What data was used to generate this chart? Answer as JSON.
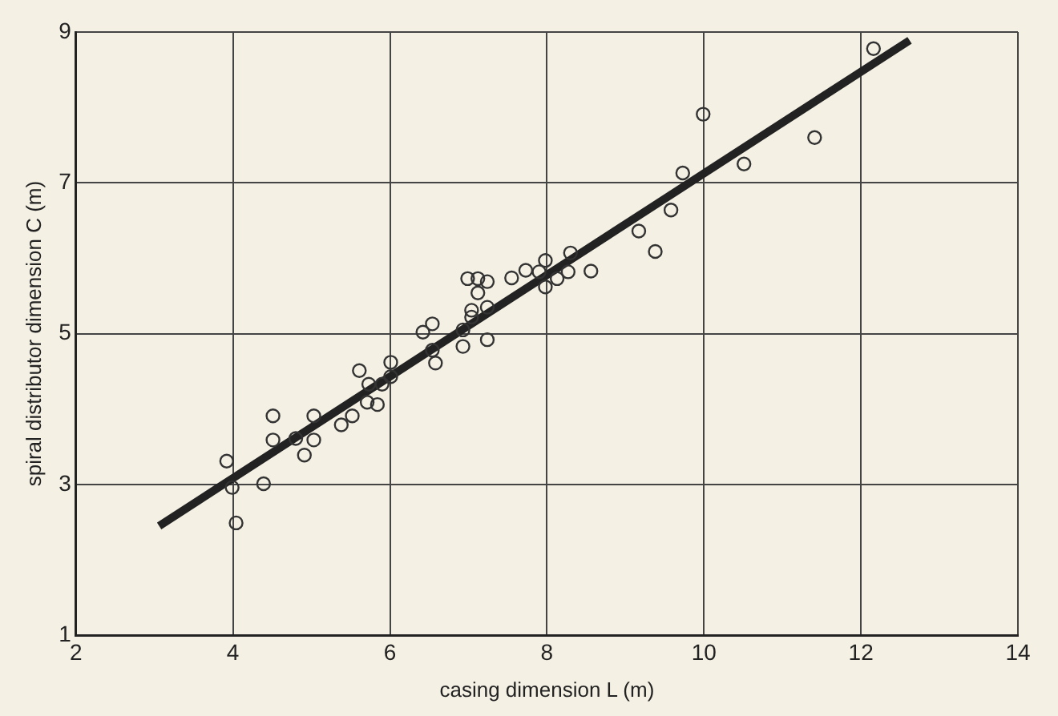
{
  "chart_data": {
    "type": "scatter",
    "xlabel": "casing dimension L (m)",
    "ylabel": "spiral distributor dimension C (m)",
    "xlim": [
      2,
      14
    ],
    "ylim": [
      1,
      9
    ],
    "xticks": [
      2,
      4,
      6,
      8,
      10,
      12,
      14
    ],
    "yticks": [
      1,
      3,
      5,
      7,
      9
    ],
    "grid": true,
    "legend": false,
    "marker": "circle",
    "series": [
      {
        "color": "#333333",
        "x": [
          3.92,
          3.99,
          4.04,
          4.39,
          4.51,
          4.51,
          4.8,
          4.91,
          5.03,
          5.03,
          5.38,
          5.52,
          5.61,
          5.73,
          5.71,
          5.84,
          5.9,
          6.01,
          6.01,
          6.42,
          6.54,
          6.54,
          6.58,
          6.93,
          6.93,
          7.04,
          7.04,
          7.24,
          7.24,
          6.99,
          7.12,
          7.24,
          7.12,
          7.55,
          7.73,
          7.9,
          7.98,
          7.98,
          8.13,
          8.27,
          8.3,
          8.56,
          9.17,
          9.38,
          9.58,
          9.73,
          9.99,
          10.51,
          11.41,
          12.16
        ],
        "values": [
          3.31,
          2.96,
          2.49,
          3.01,
          3.91,
          3.59,
          3.61,
          3.39,
          3.91,
          3.59,
          3.79,
          3.91,
          4.51,
          4.33,
          4.09,
          4.06,
          4.33,
          4.43,
          4.62,
          5.02,
          5.13,
          4.78,
          4.61,
          5.05,
          4.83,
          5.31,
          5.22,
          5.35,
          4.92,
          5.73,
          5.73,
          5.69,
          5.54,
          5.74,
          5.84,
          5.82,
          5.97,
          5.62,
          5.73,
          5.82,
          6.07,
          5.83,
          6.36,
          6.09,
          6.64,
          7.13,
          7.91,
          7.25,
          7.6,
          8.78
        ]
      },
      {
        "type": "line",
        "marker": "none",
        "color": "#222222",
        "x": [
          3.06,
          12.62
        ],
        "values": [
          2.45,
          8.89
        ]
      }
    ]
  }
}
